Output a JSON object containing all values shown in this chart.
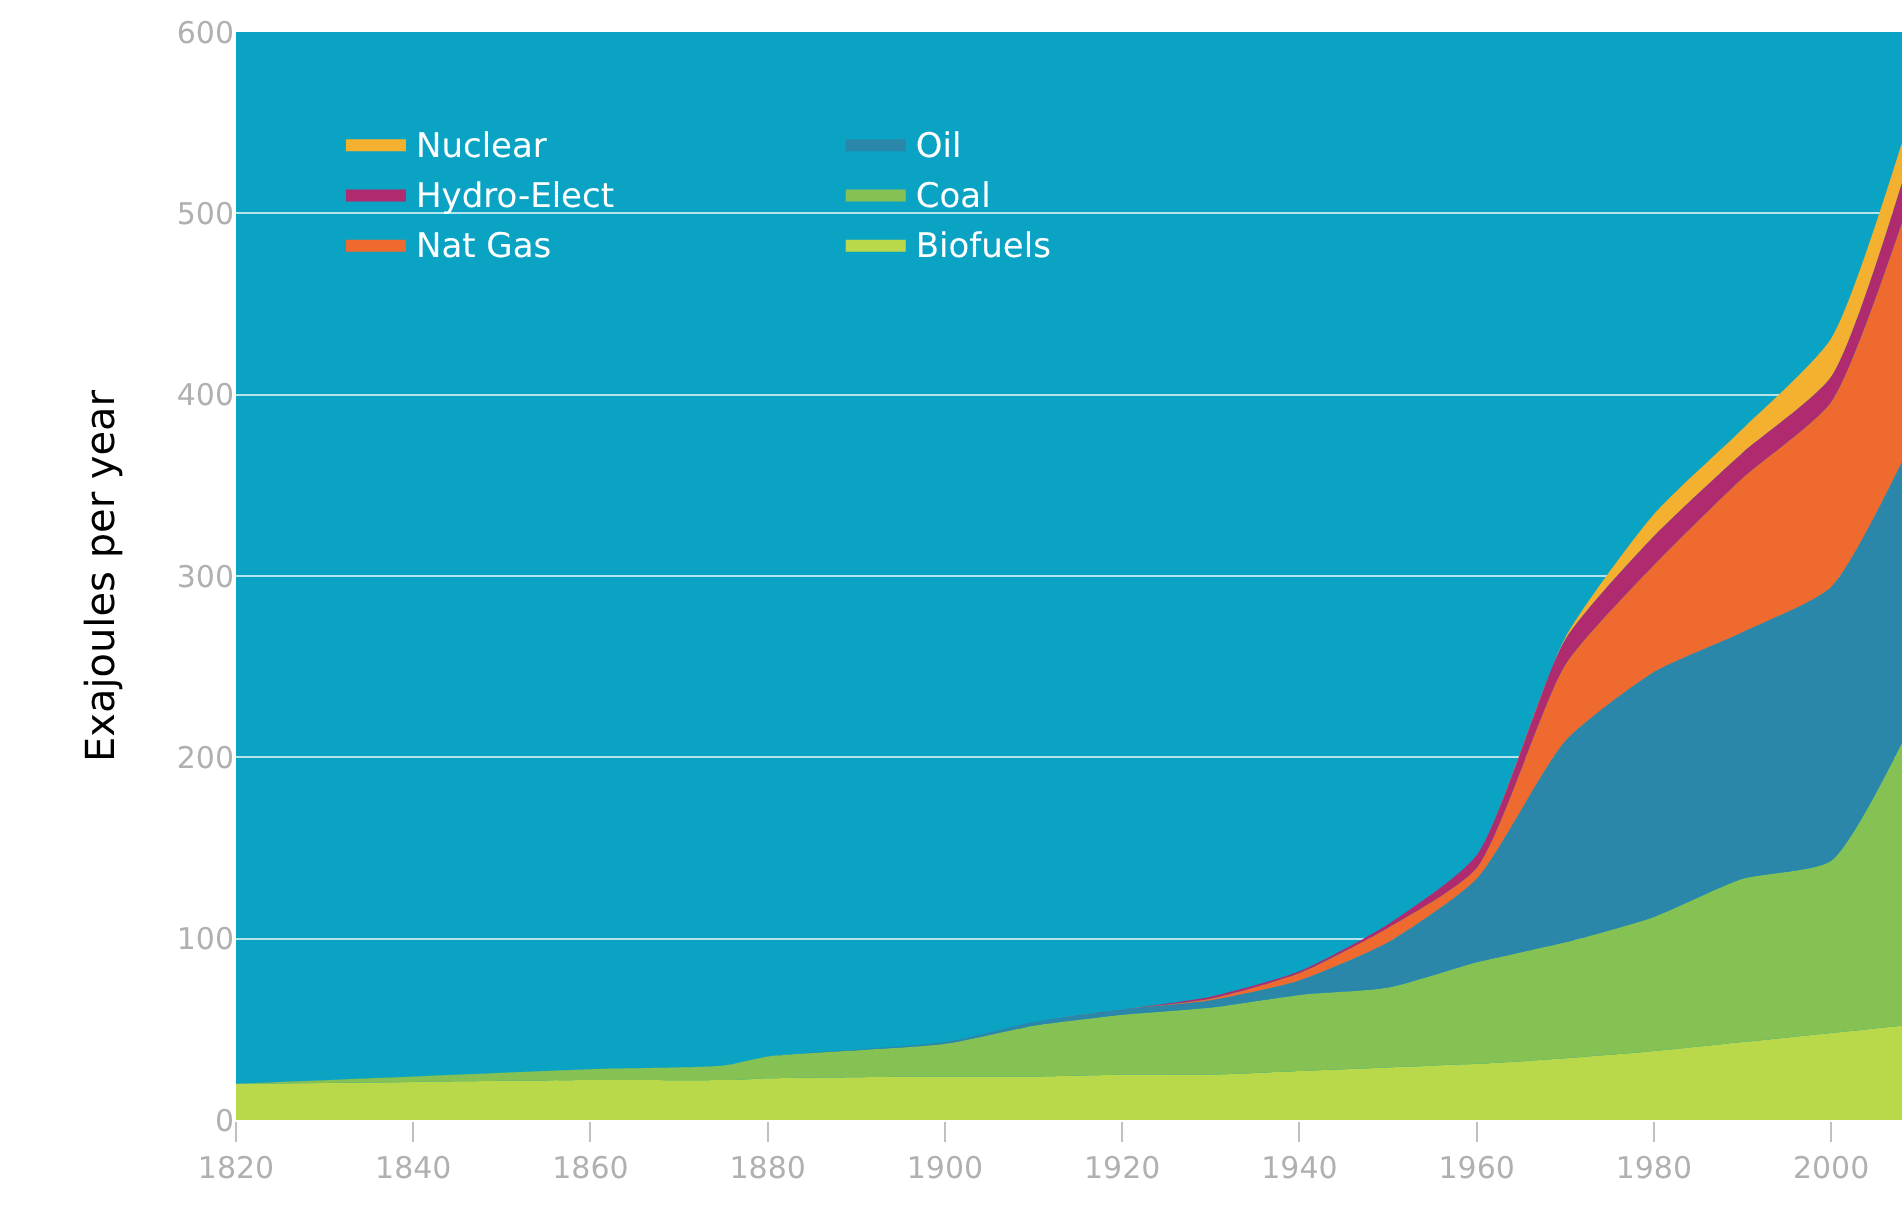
{
  "chart_data": {
    "type": "area",
    "stacked": true,
    "ylabel": "Exajoules per year",
    "x": [
      1820,
      1840,
      1860,
      1875,
      1880,
      1900,
      1910,
      1920,
      1930,
      1940,
      1950,
      1960,
      1970,
      1980,
      1990,
      2000,
      2008
    ],
    "series": [
      {
        "name": "Biofuels",
        "color": "#b9d84a",
        "values": [
          20,
          21,
          22,
          22,
          23,
          24,
          24,
          25,
          25,
          27,
          29,
          31,
          34,
          38,
          43,
          48,
          52
        ]
      },
      {
        "name": "Coal",
        "color": "#86c153",
        "values": [
          0,
          3,
          6,
          8,
          12,
          18,
          28,
          33,
          37,
          42,
          44,
          56,
          64,
          74,
          90,
          95,
          156
        ]
      },
      {
        "name": "Oil",
        "color": "#2b87aa",
        "values": [
          0,
          0,
          0,
          0,
          0,
          1,
          2,
          3,
          4,
          8,
          25,
          46,
          111,
          135,
          136,
          151,
          155
        ]
      },
      {
        "name": "Nat Gas",
        "color": "#ef6a2e",
        "values": [
          0,
          0,
          0,
          0,
          0,
          0,
          0,
          0,
          1,
          4,
          8,
          6,
          42,
          59,
          85,
          102,
          132
        ]
      },
      {
        "name": "Hydro-Elect",
        "color": "#b02a70",
        "values": [
          0,
          0,
          0,
          0,
          0,
          0,
          0,
          0,
          1,
          1,
          2,
          7,
          14,
          16,
          14,
          14,
          22
        ]
      },
      {
        "name": "Nuclear",
        "color": "#f4b12f",
        "values": [
          0,
          0,
          0,
          0,
          0,
          0,
          0,
          0,
          0,
          0,
          0,
          0,
          1,
          12,
          13,
          21,
          22
        ]
      }
    ],
    "xlim": [
      1820,
      2008
    ],
    "ylim": [
      0,
      600
    ],
    "xticks": [
      1820,
      1840,
      1860,
      1880,
      1900,
      1920,
      1940,
      1960,
      1980,
      2000
    ],
    "yticks": [
      0,
      100,
      200,
      300,
      400,
      500,
      600
    ],
    "grid": "y",
    "legend": "top left"
  }
}
